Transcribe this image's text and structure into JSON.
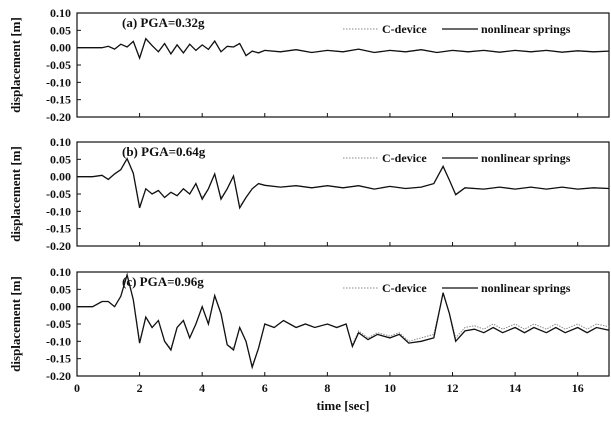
{
  "chart_data": [
    {
      "type": "line",
      "title": "(a) PGA=0.32g",
      "xlabel": "",
      "ylabel": "displacement [m]",
      "xlim": [
        0,
        17
      ],
      "ylim": [
        -0.2,
        0.1
      ],
      "yticks": [
        "0.10",
        "0.05",
        "0.00",
        "-0.05",
        "-0.10",
        "-0.15",
        "-0.20"
      ],
      "legend": {
        "placement": "top-right",
        "entries": [
          "C-device",
          "nonlinear springs"
        ]
      },
      "series": [
        {
          "name": "C-device",
          "x": [
            0,
            0.8,
            1.0,
            1.2,
            1.4,
            1.6,
            1.8,
            2.0,
            2.2,
            2.4,
            2.6,
            2.8,
            3.0,
            3.2,
            3.4,
            3.6,
            3.8,
            4.0,
            4.2,
            4.4,
            4.6,
            4.8,
            5.0,
            5.2,
            5.4,
            5.6,
            5.8,
            6.0,
            6.5,
            7.0,
            7.5,
            8.0,
            8.5,
            9.0,
            9.5,
            10.0,
            10.5,
            11.0,
            11.5,
            12.0,
            12.5,
            13.0,
            13.5,
            14.0,
            14.5,
            15.0,
            15.5,
            16.0,
            16.5,
            17.0
          ],
          "y": [
            0.0,
            0.0,
            0.004,
            -0.004,
            0.01,
            0.002,
            0.018,
            -0.028,
            0.025,
            0.006,
            -0.012,
            0.012,
            -0.018,
            0.008,
            -0.015,
            0.01,
            -0.008,
            0.008,
            -0.005,
            0.018,
            -0.012,
            0.004,
            0.002,
            0.012,
            -0.022,
            -0.01,
            -0.014,
            -0.008,
            -0.012,
            -0.006,
            -0.014,
            -0.008,
            -0.012,
            -0.004,
            -0.014,
            -0.008,
            -0.012,
            -0.006,
            -0.014,
            -0.008,
            -0.012,
            -0.008,
            -0.013,
            -0.008,
            -0.012,
            -0.008,
            -0.013,
            -0.009,
            -0.012,
            -0.01
          ]
        },
        {
          "name": "nonlinear springs",
          "x": [
            0,
            0.8,
            1.0,
            1.2,
            1.4,
            1.6,
            1.8,
            2.0,
            2.2,
            2.4,
            2.6,
            2.8,
            3.0,
            3.2,
            3.4,
            3.6,
            3.8,
            4.0,
            4.2,
            4.4,
            4.6,
            4.8,
            5.0,
            5.2,
            5.4,
            5.6,
            5.8,
            6.0,
            6.5,
            7.0,
            7.5,
            8.0,
            8.5,
            9.0,
            9.5,
            10.0,
            10.5,
            11.0,
            11.5,
            12.0,
            12.5,
            13.0,
            13.5,
            14.0,
            14.5,
            15.0,
            15.5,
            16.0,
            16.5,
            17.0
          ],
          "y": [
            0.0,
            0.0,
            0.004,
            -0.004,
            0.01,
            0.002,
            0.018,
            -0.03,
            0.026,
            0.006,
            -0.012,
            0.012,
            -0.018,
            0.008,
            -0.015,
            0.01,
            -0.008,
            0.008,
            -0.005,
            0.019,
            -0.012,
            0.004,
            0.002,
            0.012,
            -0.023,
            -0.01,
            -0.015,
            -0.008,
            -0.012,
            -0.006,
            -0.014,
            -0.008,
            -0.012,
            -0.004,
            -0.014,
            -0.008,
            -0.012,
            -0.006,
            -0.014,
            -0.008,
            -0.012,
            -0.008,
            -0.013,
            -0.008,
            -0.012,
            -0.008,
            -0.013,
            -0.009,
            -0.012,
            -0.01
          ]
        }
      ]
    },
    {
      "type": "line",
      "title": "(b) PGA=0.64g",
      "xlabel": "",
      "ylabel": "displacement [m]",
      "xlim": [
        0,
        17
      ],
      "ylim": [
        -0.2,
        0.1
      ],
      "yticks": [
        "0.10",
        "0.05",
        "0.00",
        "-0.05",
        "-0.10",
        "-0.15",
        "-0.20"
      ],
      "legend": {
        "placement": "top-right",
        "entries": [
          "C-device",
          "nonlinear springs"
        ]
      },
      "series": [
        {
          "name": "C-device",
          "x": [
            0,
            0.5,
            0.8,
            1.0,
            1.2,
            1.4,
            1.6,
            1.8,
            2.0,
            2.2,
            2.4,
            2.6,
            2.8,
            3.0,
            3.2,
            3.4,
            3.6,
            3.8,
            4.0,
            4.2,
            4.4,
            4.6,
            4.8,
            5.0,
            5.2,
            5.4,
            5.6,
            5.8,
            6.0,
            6.5,
            7.0,
            7.5,
            8.0,
            8.5,
            9.0,
            9.5,
            10.0,
            10.5,
            11.0,
            11.4,
            11.7,
            11.9,
            12.1,
            12.4,
            13.0,
            13.5,
            14.0,
            14.5,
            15.0,
            15.5,
            16.0,
            16.5,
            17.0
          ],
          "y": [
            0.0,
            0.0,
            0.004,
            -0.008,
            0.008,
            0.02,
            0.05,
            0.01,
            -0.085,
            -0.035,
            -0.05,
            -0.04,
            -0.06,
            -0.045,
            -0.055,
            -0.035,
            -0.05,
            -0.02,
            -0.06,
            -0.035,
            0.008,
            -0.06,
            -0.035,
            0.002,
            -0.085,
            -0.06,
            -0.035,
            -0.02,
            -0.025,
            -0.03,
            -0.026,
            -0.032,
            -0.026,
            -0.032,
            -0.026,
            -0.036,
            -0.028,
            -0.034,
            -0.03,
            -0.02,
            0.028,
            -0.01,
            -0.05,
            -0.032,
            -0.036,
            -0.03,
            -0.036,
            -0.03,
            -0.036,
            -0.03,
            -0.036,
            -0.032,
            -0.034
          ]
        },
        {
          "name": "nonlinear springs",
          "x": [
            0,
            0.5,
            0.8,
            1.0,
            1.2,
            1.4,
            1.6,
            1.8,
            2.0,
            2.2,
            2.4,
            2.6,
            2.8,
            3.0,
            3.2,
            3.4,
            3.6,
            3.8,
            4.0,
            4.2,
            4.4,
            4.6,
            4.8,
            5.0,
            5.2,
            5.4,
            5.6,
            5.8,
            6.0,
            6.5,
            7.0,
            7.5,
            8.0,
            8.5,
            9.0,
            9.5,
            10.0,
            10.5,
            11.0,
            11.4,
            11.7,
            11.9,
            12.1,
            12.4,
            13.0,
            13.5,
            14.0,
            14.5,
            15.0,
            15.5,
            16.0,
            16.5,
            17.0
          ],
          "y": [
            0.0,
            0.0,
            0.004,
            -0.008,
            0.008,
            0.02,
            0.052,
            0.01,
            -0.09,
            -0.035,
            -0.05,
            -0.04,
            -0.06,
            -0.045,
            -0.055,
            -0.035,
            -0.05,
            -0.02,
            -0.065,
            -0.035,
            0.008,
            -0.065,
            -0.035,
            0.002,
            -0.09,
            -0.06,
            -0.035,
            -0.02,
            -0.025,
            -0.03,
            -0.026,
            -0.032,
            -0.026,
            -0.032,
            -0.026,
            -0.036,
            -0.028,
            -0.034,
            -0.03,
            -0.02,
            0.03,
            -0.01,
            -0.052,
            -0.032,
            -0.036,
            -0.03,
            -0.036,
            -0.03,
            -0.036,
            -0.03,
            -0.036,
            -0.032,
            -0.034
          ]
        }
      ]
    },
    {
      "type": "line",
      "title": "(c) PGA=0.96g",
      "xlabel": "time [sec]",
      "ylabel": "displacement [m]",
      "xlim": [
        0,
        17
      ],
      "ylim": [
        -0.2,
        0.1
      ],
      "yticks": [
        "0.10",
        "0.05",
        "0.00",
        "-0.05",
        "-0.10",
        "-0.15",
        "-0.20"
      ],
      "xticks": [
        "0",
        "2",
        "4",
        "6",
        "8",
        "10",
        "12",
        "14",
        "16"
      ],
      "legend": {
        "placement": "top-right",
        "entries": [
          "C-device",
          "nonlinear springs"
        ]
      },
      "series": [
        {
          "name": "C-device",
          "x": [
            0,
            0.5,
            0.8,
            1.0,
            1.2,
            1.4,
            1.6,
            1.8,
            2.0,
            2.2,
            2.4,
            2.6,
            2.8,
            3.0,
            3.2,
            3.4,
            3.6,
            3.8,
            4.0,
            4.2,
            4.4,
            4.6,
            4.8,
            5.0,
            5.2,
            5.4,
            5.6,
            5.8,
            6.0,
            6.3,
            6.6,
            7.0,
            7.3,
            7.6,
            8.0,
            8.3,
            8.6,
            8.8,
            9.0,
            9.3,
            9.6,
            10.0,
            10.3,
            10.6,
            11.0,
            11.4,
            11.7,
            11.9,
            12.1,
            12.4,
            12.7,
            13.0,
            13.3,
            13.6,
            14.0,
            14.3,
            14.6,
            15.0,
            15.3,
            15.6,
            16.0,
            16.3,
            16.6,
            17.0
          ],
          "y": [
            0.0,
            0.0,
            0.015,
            0.015,
            0.0,
            0.03,
            0.09,
            0.02,
            -0.1,
            -0.03,
            -0.06,
            -0.04,
            -0.1,
            -0.12,
            -0.06,
            -0.04,
            -0.09,
            -0.05,
            0.0,
            -0.05,
            0.03,
            -0.02,
            -0.11,
            -0.12,
            -0.06,
            -0.1,
            -0.17,
            -0.12,
            -0.05,
            -0.06,
            -0.04,
            -0.06,
            -0.05,
            -0.06,
            -0.05,
            -0.06,
            -0.05,
            -0.11,
            -0.07,
            -0.09,
            -0.075,
            -0.085,
            -0.075,
            -0.1,
            -0.09,
            -0.08,
            0.038,
            -0.02,
            -0.09,
            -0.06,
            -0.055,
            -0.065,
            -0.05,
            -0.065,
            -0.05,
            -0.065,
            -0.05,
            -0.065,
            -0.05,
            -0.065,
            -0.05,
            -0.065,
            -0.05,
            -0.058
          ]
        },
        {
          "name": "nonlinear springs",
          "x": [
            0,
            0.5,
            0.8,
            1.0,
            1.2,
            1.4,
            1.6,
            1.8,
            2.0,
            2.2,
            2.4,
            2.6,
            2.8,
            3.0,
            3.2,
            3.4,
            3.6,
            3.8,
            4.0,
            4.2,
            4.4,
            4.6,
            4.8,
            5.0,
            5.2,
            5.4,
            5.6,
            5.8,
            6.0,
            6.3,
            6.6,
            7.0,
            7.3,
            7.6,
            8.0,
            8.3,
            8.6,
            8.8,
            9.0,
            9.3,
            9.6,
            10.0,
            10.3,
            10.6,
            11.0,
            11.4,
            11.7,
            11.9,
            12.1,
            12.4,
            12.7,
            13.0,
            13.3,
            13.6,
            14.0,
            14.3,
            14.6,
            15.0,
            15.3,
            15.6,
            16.0,
            16.3,
            16.6,
            17.0
          ],
          "y": [
            0.0,
            0.0,
            0.015,
            0.015,
            0.0,
            0.03,
            0.092,
            0.02,
            -0.105,
            -0.03,
            -0.06,
            -0.04,
            -0.1,
            -0.125,
            -0.06,
            -0.04,
            -0.09,
            -0.05,
            0.0,
            -0.05,
            0.032,
            -0.02,
            -0.11,
            -0.125,
            -0.06,
            -0.1,
            -0.175,
            -0.12,
            -0.05,
            -0.06,
            -0.04,
            -0.06,
            -0.05,
            -0.06,
            -0.05,
            -0.06,
            -0.05,
            -0.115,
            -0.075,
            -0.095,
            -0.08,
            -0.09,
            -0.08,
            -0.105,
            -0.1,
            -0.09,
            0.04,
            -0.02,
            -0.1,
            -0.07,
            -0.065,
            -0.075,
            -0.06,
            -0.075,
            -0.06,
            -0.075,
            -0.06,
            -0.075,
            -0.06,
            -0.075,
            -0.06,
            -0.075,
            -0.06,
            -0.068
          ]
        }
      ]
    }
  ]
}
